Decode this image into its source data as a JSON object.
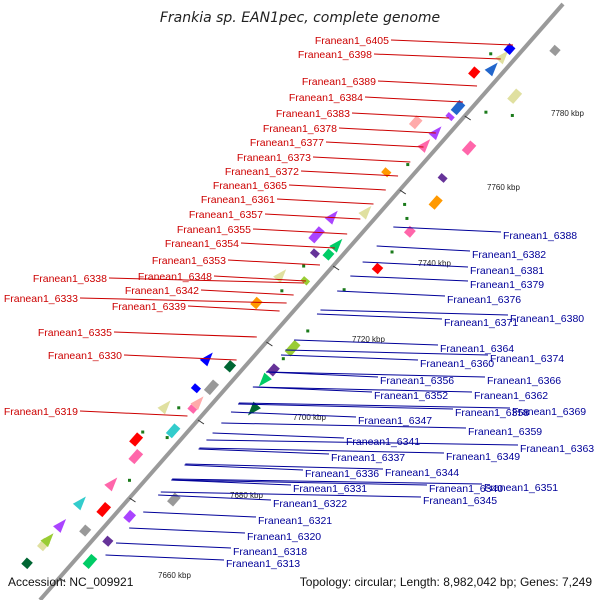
{
  "title": "Frankia sp. EAN1pec, complete genome",
  "footer": {
    "accession": "Accession: NC_009921",
    "summary": "Topology: circular; Length: 8,982,042 bp; Genes: 7,249"
  },
  "colors": {
    "red_label": "#cc0000",
    "blue_label": "#000099",
    "backbone": "#9a9a9a"
  },
  "ticks": [
    "7660 kbp",
    "7680 kbp",
    "7700 kbp",
    "7720 kbp",
    "7740 kbp",
    "7760 kbp",
    "7780 kbp"
  ],
  "left_labels": [
    "Franean1_6405",
    "Franean1_6398",
    "Franean1_6389",
    "Franean1_6384",
    "Franean1_6383",
    "Franean1_6378",
    "Franean1_6377",
    "Franean1_6373",
    "Franean1_6372",
    "Franean1_6365",
    "Franean1_6361",
    "Franean1_6357",
    "Franean1_6355",
    "Franean1_6354",
    "Franean1_6353",
    "Franean1_6348",
    "Franean1_6338",
    "Franean1_6342",
    "Franean1_6333",
    "Franean1_6339",
    "Franean1_6335",
    "Franean1_6330",
    "Franean1_6319"
  ],
  "right_labels": [
    "Franean1_6388",
    "Franean1_6382",
    "Franean1_6381",
    "Franean1_6379",
    "Franean1_6376",
    "Franean1_6380",
    "Franean1_6371",
    "Franean1_6364",
    "Franean1_6360",
    "Franean1_6374",
    "Franean1_6366",
    "Franean1_6356",
    "Franean1_6362",
    "Franean1_6352",
    "Franean1_6358",
    "Franean1_6369",
    "Franean1_6347",
    "Franean1_6359",
    "Franean1_6341",
    "Franean1_6363",
    "Franean1_6337",
    "Franean1_6349",
    "Franean1_6344",
    "Franean1_6336",
    "Franean1_6331",
    "Franean1_6340",
    "Franean1_6351",
    "Franean1_6345",
    "Franean1_6322",
    "Franean1_6321",
    "Franean1_6320",
    "Franean1_6318",
    "Franean1_6313"
  ]
}
